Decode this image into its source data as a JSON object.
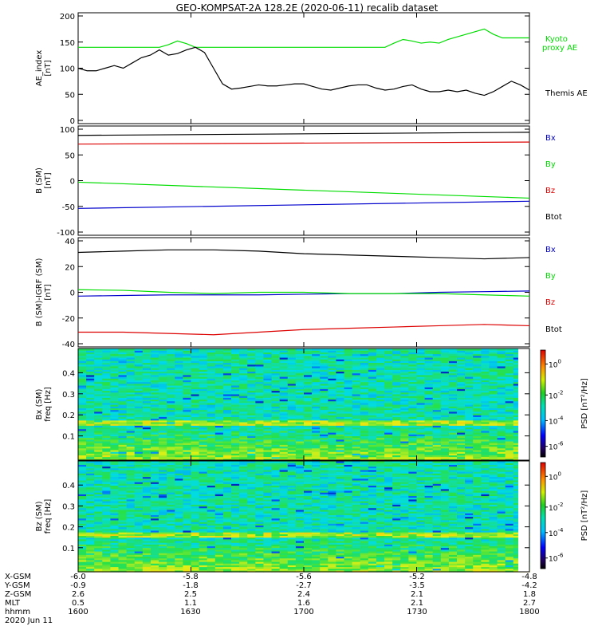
{
  "title": "GEO-KOMPSAT-2A 128.2E (2020-06-11) recalib dataset",
  "colors": {
    "black": "#000000",
    "green": "#00dd00",
    "red": "#dd0000",
    "blue": "#0000cc"
  },
  "colorbar_label": "PSD [nT²/Hz]",
  "colorbar_ticks": [
    {
      "label": "10",
      "exp": "0"
    },
    {
      "label": "10",
      "exp": "-2"
    },
    {
      "label": "10",
      "exp": "-4"
    },
    {
      "label": "10",
      "exp": "-6"
    }
  ],
  "chart_data": [
    {
      "type": "line",
      "ylabel": "AE_index [nT]",
      "ylabel_lines": [
        "AE_index",
        "[nT]"
      ],
      "ylim": [
        0,
        200
      ],
      "yticks": [
        0,
        50,
        100,
        150,
        200
      ],
      "x": [
        0,
        0.02,
        0.04,
        0.06,
        0.08,
        0.1,
        0.12,
        0.14,
        0.16,
        0.18,
        0.2,
        0.22,
        0.24,
        0.26,
        0.28,
        0.3,
        0.32,
        0.34,
        0.36,
        0.38,
        0.4,
        0.42,
        0.44,
        0.46,
        0.48,
        0.5,
        0.52,
        0.54,
        0.56,
        0.58,
        0.6,
        0.62,
        0.64,
        0.66,
        0.68,
        0.7,
        0.72,
        0.74,
        0.76,
        0.78,
        0.8,
        0.82,
        0.84,
        0.86,
        0.88,
        0.9,
        0.92,
        0.94,
        0.96,
        0.98,
        1
      ],
      "series": [
        {
          "name": "Kyoto proxy AE",
          "color": "green",
          "values": [
            140,
            140,
            140,
            140,
            140,
            140,
            140,
            140,
            140,
            140,
            145,
            152,
            147,
            140,
            140,
            140,
            140,
            140,
            140,
            140,
            140,
            140,
            140,
            140,
            140,
            140,
            140,
            140,
            140,
            140,
            140,
            140,
            140,
            140,
            140,
            148,
            155,
            152,
            148,
            150,
            148,
            155,
            160,
            165,
            170,
            175,
            165,
            158,
            158,
            158,
            158
          ]
        },
        {
          "name": "Themis AE",
          "color": "black",
          "values": [
            100,
            95,
            95,
            100,
            105,
            100,
            110,
            120,
            125,
            135,
            125,
            128,
            135,
            140,
            130,
            100,
            70,
            60,
            62,
            65,
            68,
            66,
            66,
            68,
            70,
            70,
            65,
            60,
            58,
            62,
            66,
            68,
            68,
            62,
            58,
            60,
            65,
            68,
            60,
            55,
            55,
            58,
            55,
            58,
            52,
            48,
            55,
            65,
            75,
            68,
            58
          ]
        }
      ]
    },
    {
      "type": "line",
      "ylabel": "B (SM) [nT]",
      "ylabel_lines": [
        "B (SM)",
        "[nT]"
      ],
      "ylim": [
        -100,
        100
      ],
      "yticks": [
        -100,
        -50,
        0,
        50,
        100
      ],
      "x": [
        0,
        1
      ],
      "series": [
        {
          "name": "Bx",
          "color": "blue",
          "values": [
            -54,
            -40
          ]
        },
        {
          "name": "By",
          "color": "green",
          "values": [
            -3,
            -34
          ]
        },
        {
          "name": "Bz",
          "color": "red",
          "values": [
            71,
            75
          ]
        },
        {
          "name": "Btot",
          "color": "black",
          "values": [
            88,
            94
          ]
        }
      ]
    },
    {
      "type": "line",
      "ylabel": "B (SM)-IGRF (SM) [nT]",
      "ylabel_lines": [
        "B (SM)-IGRF (SM)",
        "[nT]"
      ],
      "ylim": [
        -40,
        40
      ],
      "yticks": [
        -40,
        -20,
        0,
        20,
        40
      ],
      "x": [
        0,
        0.1,
        0.2,
        0.3,
        0.4,
        0.5,
        0.6,
        0.7,
        0.8,
        0.9,
        1
      ],
      "series": [
        {
          "name": "Bx",
          "color": "blue",
          "values": [
            -3,
            -2.5,
            -2,
            -2,
            -2,
            -1.5,
            -1,
            -1,
            0,
            0.5,
            1
          ]
        },
        {
          "name": "By",
          "color": "green",
          "values": [
            2,
            1.5,
            0,
            -1,
            0,
            0,
            -1,
            -1,
            -1,
            -2,
            -3
          ]
        },
        {
          "name": "Bz",
          "color": "red",
          "values": [
            -31,
            -31,
            -32,
            -33,
            -31,
            -29,
            -28,
            -27,
            -26,
            -25,
            -26
          ]
        },
        {
          "name": "Btot",
          "color": "black",
          "values": [
            31,
            32,
            33,
            33,
            32,
            30,
            29,
            28,
            27,
            26,
            27
          ]
        }
      ]
    },
    {
      "type": "heatmap",
      "ylabel": "Bx (SM) freq [Hz]",
      "ylabel_lines": [
        "Bx (SM)",
        "freq [Hz]"
      ],
      "ylim": [
        0,
        0.5
      ],
      "yticks": [
        0.1,
        0.2,
        0.3,
        0.4
      ],
      "colorbar_label": "PSD [nT²/Hz]"
    },
    {
      "type": "heatmap",
      "ylabel": "Bz (SM) freq [Hz]",
      "ylabel_lines": [
        "Bz (SM)",
        "freq [Hz]"
      ],
      "ylim": [
        0,
        0.5
      ],
      "yticks": [
        0.1,
        0.2,
        0.3,
        0.4
      ],
      "colorbar_label": "PSD [nT²/Hz]"
    }
  ],
  "ephemeris": {
    "labels": [
      "X-GSM",
      "Y-GSM",
      "Z-GSM",
      "MLT",
      "hhmm"
    ],
    "date": "2020 Jun 11",
    "columns": [
      [
        "-6.0",
        "-0.9",
        "2.6",
        "0.5",
        "1600"
      ],
      [
        "-5.8",
        "-1.8",
        "2.5",
        "1.1",
        "1630"
      ],
      [
        "-5.6",
        "-2.7",
        "2.4",
        "1.6",
        "1700"
      ],
      [
        "-5.2",
        "-3.5",
        "2.1",
        "2.1",
        "1730"
      ],
      [
        "-4.8",
        "-4.2",
        "1.8",
        "2.7",
        "1800"
      ]
    ]
  }
}
